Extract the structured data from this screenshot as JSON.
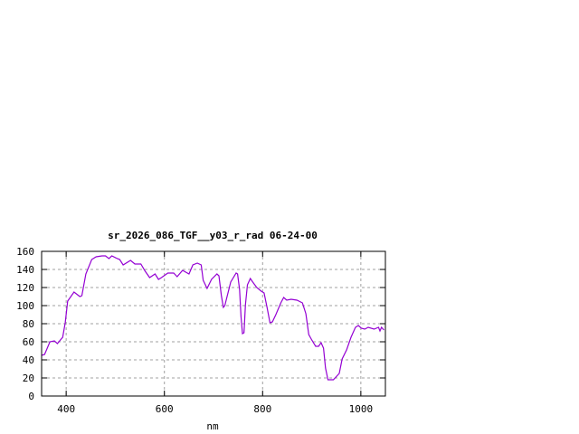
{
  "chart_data": {
    "type": "line",
    "title": "sr_2026_086_TGF__y03_r_rad 06-24-00",
    "xlabel": "nm",
    "ylabel": "",
    "xlim": [
      350,
      1050
    ],
    "ylim": [
      0,
      160
    ],
    "xticks": [
      400,
      600,
      800,
      1000
    ],
    "yticks": [
      0,
      20,
      40,
      60,
      80,
      100,
      120,
      140,
      160
    ],
    "grid": true,
    "legend": "none",
    "series": [
      {
        "color": "#9400d3",
        "x": [
          350,
          356,
          367,
          376,
          382,
          393,
          398,
          403,
          416,
          428,
          432,
          440,
          452,
          461,
          473,
          480,
          487,
          493,
          504,
          509,
          516,
          531,
          540,
          552,
          561,
          570,
          581,
          588,
          594,
          607,
          619,
          626,
          637,
          650,
          658,
          667,
          675,
          679,
          687,
          696,
          707,
          711,
          716,
          720,
          723,
          735,
          746,
          749,
          753,
          756,
          759,
          762,
          765,
          769,
          775,
          780,
          788,
          797,
          803,
          809,
          815,
          820,
          827,
          837,
          843,
          849,
          858,
          870,
          881,
          888,
          894,
          900,
          908,
          914,
          919,
          924,
          928,
          933,
          944,
          956,
          962,
          971,
          980,
          989,
          995,
          1001,
          1008,
          1015,
          1027,
          1036,
          1039,
          1042,
          1047
        ],
        "y": [
          45,
          46,
          60,
          61,
          58,
          65,
          81,
          105,
          115,
          110,
          111,
          135,
          151,
          154,
          155,
          155,
          152,
          155,
          152,
          151,
          145,
          150,
          146,
          146,
          138,
          131,
          135,
          129,
          131,
          136,
          136,
          132,
          139,
          135,
          145,
          147,
          145,
          128,
          119,
          129,
          135,
          133,
          111,
          98,
          100,
          126,
          136,
          135,
          118,
          88,
          69,
          70,
          101,
          123,
          130,
          126,
          120,
          116,
          114,
          98,
          81,
          82,
          90,
          103,
          109,
          106,
          107,
          106,
          103,
          91,
          68,
          62,
          55,
          55,
          59,
          53,
          31,
          18,
          18,
          25,
          41,
          51,
          65,
          76,
          78,
          75,
          74,
          76,
          74,
          76,
          72,
          76,
          73
        ]
      }
    ]
  }
}
